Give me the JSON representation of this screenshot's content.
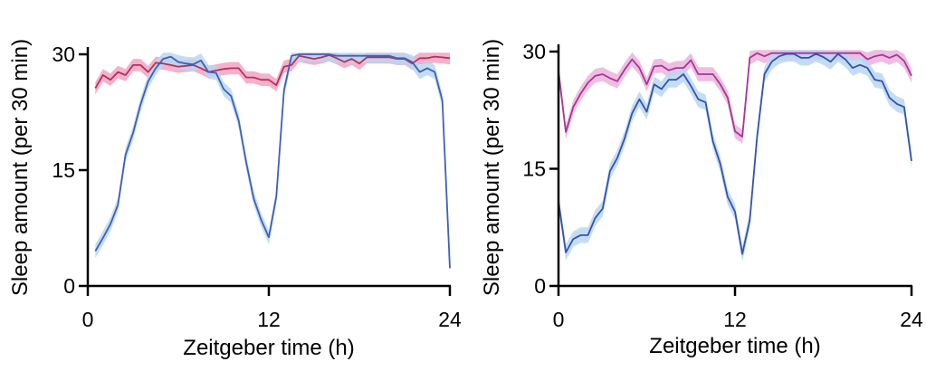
{
  "chart_data": [
    {
      "type": "line",
      "title": "",
      "xlabel": "Zeitgeber time (h)",
      "ylabel": "Sleep amount (per 30 min)",
      "xlim": [
        0,
        24
      ],
      "ylim": [
        0,
        30
      ],
      "xticks": [
        "0",
        "12",
        "24"
      ],
      "yticks": [
        "0",
        "15",
        "30"
      ],
      "grid": false,
      "legend": "none",
      "x_start": 0.5,
      "x_step": 0.5,
      "series": [
        {
          "name": "red",
          "color": "#b8305a",
          "band_color": "#f2a3c2",
          "sem": 0.8,
          "values": [
            25.6,
            27.3,
            26.7,
            27.7,
            27.3,
            28.6,
            28.6,
            27.7,
            28.9,
            28.8,
            28.6,
            28.4,
            28.5,
            28.6,
            28.2,
            27.7,
            27.9,
            28.1,
            28.2,
            28.2,
            27,
            27,
            26.7,
            26.7,
            26,
            28.4,
            28.6,
            29.8,
            29.6,
            29.4,
            29.6,
            29.9,
            29.5,
            29,
            29.4,
            28.8,
            29.6,
            29.6,
            29.6,
            29.6,
            29.4,
            29.4,
            28.8,
            29.5,
            29.5,
            29.7,
            29.6,
            29.5
          ]
        },
        {
          "name": "blue",
          "color": "#3f5fba",
          "band_color": "#b9d7f1",
          "sem": 0.9,
          "values": [
            4.5,
            6.2,
            8,
            10.5,
            17,
            19.8,
            23.5,
            26.5,
            28.2,
            29.4,
            29.7,
            29,
            28.8,
            28.7,
            29.2,
            27.7,
            27.6,
            25.5,
            24.6,
            21.4,
            16,
            11.3,
            8.5,
            6.3,
            11.6,
            25.3,
            29.8,
            30,
            30,
            30,
            30,
            30,
            29.8,
            29.8,
            29.8,
            29.8,
            29.8,
            29.8,
            29.8,
            29.8,
            29.5,
            29.5,
            29,
            27.7,
            28.2,
            27.7,
            24,
            2.3
          ]
        }
      ]
    },
    {
      "type": "line",
      "title": "",
      "xlabel": "Zeitgeber time (h)",
      "ylabel": "Sleep amount (per 30 min)",
      "xlim": [
        0,
        24
      ],
      "ylim": [
        0,
        30
      ],
      "xticks": [
        "0",
        "12",
        "24"
      ],
      "yticks": [
        "0",
        "15",
        "30"
      ],
      "grid": false,
      "legend": "none",
      "x_start": 0,
      "x_step": 0.5,
      "series": [
        {
          "name": "magenta",
          "color": "#a8359a",
          "band_color": "#ebb3dc",
          "sem": 0.9,
          "values": [
            27.5,
            19.7,
            22.9,
            24.6,
            26,
            26.9,
            27.1,
            26.6,
            26.2,
            27.7,
            29,
            27.9,
            25.8,
            28.1,
            28.2,
            27.6,
            27.9,
            27.9,
            28.9,
            27.1,
            27.1,
            27.1,
            25.8,
            24.1,
            19.8,
            19.1,
            29.2,
            29.8,
            29.4,
            29.8,
            29.8,
            29.8,
            29.8,
            29.8,
            29.8,
            29.8,
            29.8,
            29.8,
            29.8,
            29.8,
            29.8,
            29.8,
            29,
            29.4,
            29.6,
            29.2,
            29.6,
            28.8,
            26.9
          ]
        },
        {
          "name": "blue",
          "color": "#3552b0",
          "band_color": "#b9d7f1",
          "sem": 1.0,
          "values": [
            10.8,
            4.3,
            6,
            6.5,
            6.5,
            8.7,
            9.9,
            14.7,
            16.4,
            18.9,
            22.1,
            23.9,
            22.3,
            25.8,
            25.2,
            26.4,
            26.4,
            27.1,
            25.6,
            23.9,
            23.5,
            18.5,
            15.6,
            11.4,
            9.5,
            4.1,
            8.4,
            19.1,
            27.1,
            28.7,
            29.4,
            29.7,
            29.7,
            29.2,
            29.2,
            29.7,
            29.3,
            28.7,
            29.7,
            29,
            27.9,
            28.3,
            27.9,
            26.4,
            26.2,
            24.1,
            23.3,
            22.9,
            16
          ]
        }
      ]
    }
  ]
}
